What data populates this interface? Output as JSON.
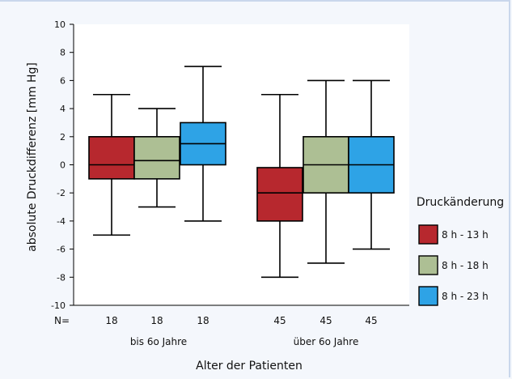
{
  "chart_data": {
    "type": "box",
    "xlabel": "Alter der Patienten",
    "ylabel": "absolute Druckdifferenz [mm Hg]",
    "ylim": [
      -10,
      10
    ],
    "yticks": [
      "10",
      "8",
      "6",
      "4",
      "2",
      "0",
      "-2",
      "-4",
      "-6",
      "-8",
      "-10"
    ],
    "n_label": "N=",
    "groups": [
      {
        "label": "bis 6o Jahre",
        "n": [
          "18",
          "18",
          "18"
        ]
      },
      {
        "label": "über 6o Jahre",
        "n": [
          "45",
          "45",
          "45"
        ]
      }
    ],
    "legend": {
      "title": "Druckänderung",
      "position": "right",
      "entries": [
        "8 h - 13 h",
        "8 h - 18 h",
        "8 h - 23 h"
      ]
    },
    "series": [
      {
        "name": "8 h - 13 h",
        "color": "#b7282e",
        "boxes": [
          {
            "min": -5,
            "q1": -1,
            "median": 0,
            "q3": 2,
            "max": 5
          },
          {
            "min": -8,
            "q1": -4,
            "median": -2,
            "q3": -0.2,
            "max": 5
          }
        ]
      },
      {
        "name": "8 h - 18 h",
        "color": "#adbf94",
        "boxes": [
          {
            "min": -3,
            "q1": -1,
            "median": 0.3,
            "q3": 2,
            "max": 4
          },
          {
            "min": -7,
            "q1": -2,
            "median": 0,
            "q3": 2,
            "max": 6
          }
        ]
      },
      {
        "name": "8 h - 23 h",
        "color": "#2ea3e6",
        "boxes": [
          {
            "min": -4,
            "q1": 0,
            "median": 1.5,
            "q3": 3,
            "max": 7
          },
          {
            "min": -6,
            "q1": -2,
            "median": 0,
            "q3": 2,
            "max": 6
          }
        ]
      }
    ]
  }
}
